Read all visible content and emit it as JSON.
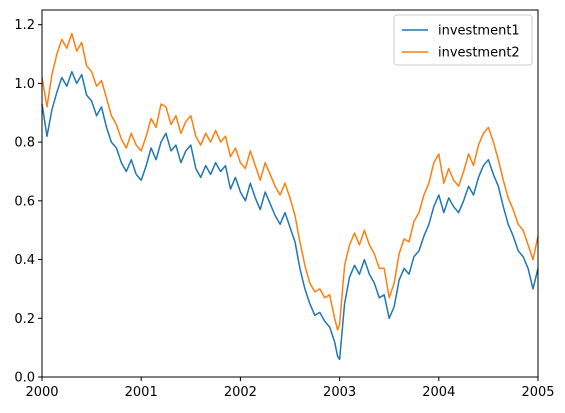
{
  "chart_data": {
    "type": "line",
    "title": "",
    "xlabel": "",
    "ylabel": "",
    "grid": false,
    "legend_position": "upper-right",
    "xlim": [
      2000,
      2005
    ],
    "ylim": [
      0.0,
      1.25
    ],
    "x_ticks": [
      {
        "value": 2000,
        "label": "2000"
      },
      {
        "value": 2001,
        "label": "2001"
      },
      {
        "value": 2002,
        "label": "2002"
      },
      {
        "value": 2003,
        "label": "2003"
      },
      {
        "value": 2004,
        "label": "2004"
      },
      {
        "value": 2005,
        "label": "2005"
      }
    ],
    "y_ticks": [
      {
        "value": 0.0,
        "label": "0.0"
      },
      {
        "value": 0.2,
        "label": "0.2"
      },
      {
        "value": 0.4,
        "label": "0.4"
      },
      {
        "value": 0.6,
        "label": "0.6"
      },
      {
        "value": 0.8,
        "label": "0.8"
      },
      {
        "value": 1.0,
        "label": "1.0"
      },
      {
        "value": 1.2,
        "label": "1.2"
      }
    ],
    "series": [
      {
        "name": "investment1",
        "color": "#1f77b4",
        "x": [
          2000.0,
          2000.05,
          2000.1,
          2000.15,
          2000.2,
          2000.25,
          2000.3,
          2000.35,
          2000.4,
          2000.45,
          2000.5,
          2000.55,
          2000.6,
          2000.65,
          2000.7,
          2000.75,
          2000.8,
          2000.85,
          2000.9,
          2000.95,
          2001.0,
          2001.05,
          2001.1,
          2001.15,
          2001.2,
          2001.25,
          2001.3,
          2001.35,
          2001.4,
          2001.45,
          2001.5,
          2001.55,
          2001.6,
          2001.65,
          2001.7,
          2001.75,
          2001.8,
          2001.85,
          2001.9,
          2001.95,
          2002.0,
          2002.05,
          2002.1,
          2002.15,
          2002.2,
          2002.25,
          2002.3,
          2002.35,
          2002.4,
          2002.45,
          2002.5,
          2002.55,
          2002.6,
          2002.65,
          2002.7,
          2002.75,
          2002.8,
          2002.85,
          2002.9,
          2002.95,
          2002.98,
          2003.0,
          2003.05,
          2003.1,
          2003.15,
          2003.2,
          2003.25,
          2003.3,
          2003.35,
          2003.4,
          2003.45,
          2003.5,
          2003.55,
          2003.6,
          2003.65,
          2003.7,
          2003.75,
          2003.8,
          2003.85,
          2003.9,
          2003.95,
          2004.0,
          2004.05,
          2004.1,
          2004.15,
          2004.2,
          2004.25,
          2004.3,
          2004.35,
          2004.4,
          2004.45,
          2004.5,
          2004.55,
          2004.6,
          2004.65,
          2004.7,
          2004.75,
          2004.8,
          2004.85,
          2004.9,
          2004.95,
          2005.0
        ],
        "values": [
          0.93,
          0.82,
          0.91,
          0.97,
          1.02,
          0.99,
          1.04,
          1.0,
          1.03,
          0.96,
          0.94,
          0.89,
          0.92,
          0.85,
          0.8,
          0.78,
          0.73,
          0.7,
          0.74,
          0.69,
          0.67,
          0.72,
          0.78,
          0.74,
          0.8,
          0.83,
          0.77,
          0.79,
          0.73,
          0.77,
          0.79,
          0.71,
          0.68,
          0.72,
          0.69,
          0.73,
          0.7,
          0.72,
          0.64,
          0.68,
          0.63,
          0.6,
          0.66,
          0.61,
          0.57,
          0.63,
          0.59,
          0.55,
          0.52,
          0.56,
          0.51,
          0.46,
          0.37,
          0.3,
          0.25,
          0.21,
          0.22,
          0.19,
          0.17,
          0.12,
          0.07,
          0.06,
          0.25,
          0.34,
          0.38,
          0.35,
          0.4,
          0.35,
          0.32,
          0.27,
          0.28,
          0.2,
          0.24,
          0.33,
          0.37,
          0.35,
          0.41,
          0.43,
          0.48,
          0.52,
          0.58,
          0.62,
          0.56,
          0.61,
          0.58,
          0.56,
          0.6,
          0.65,
          0.62,
          0.68,
          0.72,
          0.74,
          0.69,
          0.65,
          0.58,
          0.52,
          0.48,
          0.43,
          0.41,
          0.37,
          0.3,
          0.37
        ]
      },
      {
        "name": "investment2",
        "color": "#ff7f0e",
        "x": [
          2000.0,
          2000.05,
          2000.1,
          2000.15,
          2000.2,
          2000.25,
          2000.3,
          2000.35,
          2000.4,
          2000.45,
          2000.5,
          2000.55,
          2000.6,
          2000.65,
          2000.7,
          2000.75,
          2000.8,
          2000.85,
          2000.9,
          2000.95,
          2001.0,
          2001.05,
          2001.1,
          2001.15,
          2001.2,
          2001.25,
          2001.3,
          2001.35,
          2001.4,
          2001.45,
          2001.5,
          2001.55,
          2001.6,
          2001.65,
          2001.7,
          2001.75,
          2001.8,
          2001.85,
          2001.9,
          2001.95,
          2002.0,
          2002.05,
          2002.1,
          2002.15,
          2002.2,
          2002.25,
          2002.3,
          2002.35,
          2002.4,
          2002.45,
          2002.5,
          2002.55,
          2002.6,
          2002.65,
          2002.7,
          2002.75,
          2002.8,
          2002.85,
          2002.9,
          2002.95,
          2002.98,
          2003.0,
          2003.05,
          2003.1,
          2003.15,
          2003.2,
          2003.25,
          2003.3,
          2003.35,
          2003.4,
          2003.45,
          2003.5,
          2003.55,
          2003.6,
          2003.65,
          2003.7,
          2003.75,
          2003.8,
          2003.85,
          2003.9,
          2003.95,
          2004.0,
          2004.05,
          2004.1,
          2004.15,
          2004.2,
          2004.25,
          2004.3,
          2004.35,
          2004.4,
          2004.45,
          2004.5,
          2004.55,
          2004.6,
          2004.65,
          2004.7,
          2004.75,
          2004.8,
          2004.85,
          2004.9,
          2004.95,
          2005.0
        ],
        "values": [
          1.02,
          0.92,
          1.03,
          1.1,
          1.15,
          1.12,
          1.17,
          1.11,
          1.14,
          1.06,
          1.04,
          0.99,
          1.01,
          0.95,
          0.89,
          0.86,
          0.81,
          0.78,
          0.83,
          0.79,
          0.77,
          0.82,
          0.88,
          0.85,
          0.93,
          0.92,
          0.86,
          0.89,
          0.83,
          0.87,
          0.89,
          0.82,
          0.79,
          0.83,
          0.8,
          0.84,
          0.8,
          0.82,
          0.75,
          0.78,
          0.73,
          0.71,
          0.77,
          0.72,
          0.67,
          0.73,
          0.69,
          0.65,
          0.62,
          0.66,
          0.61,
          0.55,
          0.46,
          0.38,
          0.32,
          0.29,
          0.3,
          0.27,
          0.28,
          0.2,
          0.16,
          0.18,
          0.38,
          0.45,
          0.49,
          0.45,
          0.5,
          0.45,
          0.42,
          0.37,
          0.37,
          0.27,
          0.32,
          0.42,
          0.47,
          0.46,
          0.53,
          0.56,
          0.62,
          0.66,
          0.73,
          0.76,
          0.66,
          0.71,
          0.67,
          0.65,
          0.7,
          0.76,
          0.72,
          0.79,
          0.83,
          0.85,
          0.8,
          0.74,
          0.67,
          0.61,
          0.57,
          0.52,
          0.5,
          0.45,
          0.4,
          0.48
        ]
      }
    ]
  }
}
